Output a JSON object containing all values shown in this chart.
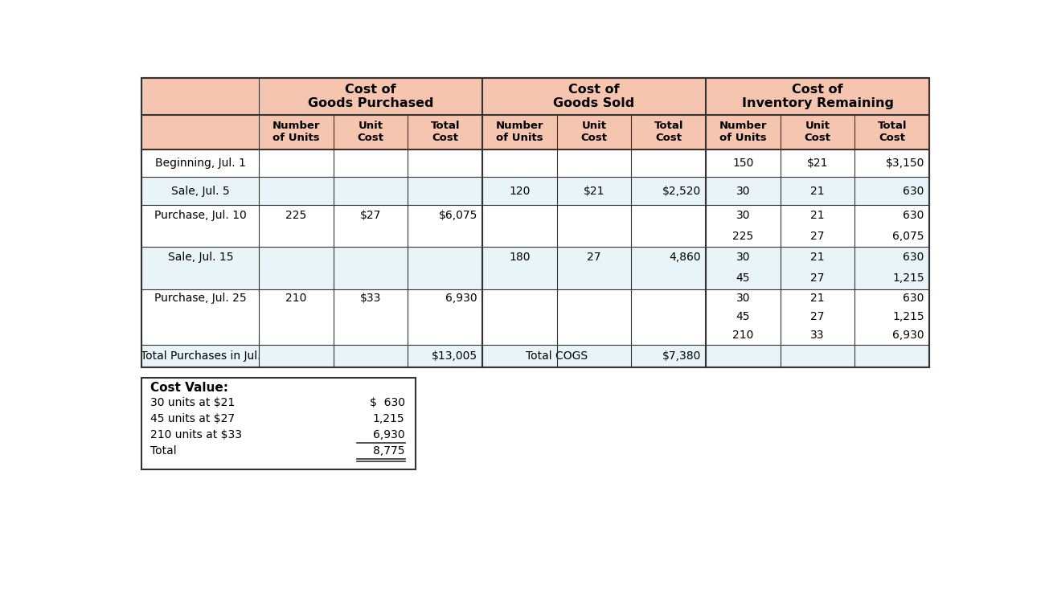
{
  "header_bg_color": "#f5c5b0",
  "row_bg_even": "#e8f4f8",
  "row_bg_odd": "#ffffff",
  "border_color": "#333333",
  "section_headers": [
    "Cost of\nGoods Purchased",
    "Cost of\nGoods Sold",
    "Cost of\nInventory Remaining"
  ],
  "col_headers": [
    "Number\nof Units",
    "Unit\nCost",
    "Total\nCost",
    "Number\nof Units",
    "Unit\nCost",
    "Total\nCost",
    "Number\nof Units",
    "Unit\nCost",
    "Total\nCost"
  ],
  "rows": [
    {
      "label": "Beginning, Jul. 1",
      "purchased": [
        "",
        "",
        ""
      ],
      "sold": [
        "",
        "",
        ""
      ],
      "inventory": [
        [
          "150",
          "$21",
          "$3,150"
        ]
      ]
    },
    {
      "label": "Sale, Jul. 5",
      "purchased": [
        "",
        "",
        ""
      ],
      "sold": [
        "120",
        "$21",
        "$2,520"
      ],
      "inventory": [
        [
          "30",
          "21",
          "630"
        ]
      ]
    },
    {
      "label": "Purchase, Jul. 10",
      "purchased": [
        "225",
        "$27",
        "$6,075"
      ],
      "sold": [
        "",
        "",
        ""
      ],
      "inventory": [
        [
          "30",
          "21",
          "630"
        ],
        [
          "225",
          "27",
          "6,075"
        ]
      ]
    },
    {
      "label": "Sale, Jul. 15",
      "purchased": [
        "",
        "",
        ""
      ],
      "sold": [
        "180",
        "27",
        "4,860"
      ],
      "inventory": [
        [
          "30",
          "21",
          "630"
        ],
        [
          "45",
          "27",
          "1,215"
        ]
      ]
    },
    {
      "label": "Purchase, Jul. 25",
      "purchased": [
        "210",
        "$33",
        "6,930"
      ],
      "sold": [
        "",
        "",
        ""
      ],
      "inventory": [
        [
          "30",
          "21",
          "630"
        ],
        [
          "45",
          "27",
          "1,215"
        ],
        [
          "210",
          "33",
          "6,930"
        ]
      ]
    }
  ],
  "total_label": "Total Purchases in Jul.",
  "total_purchased": "$13,005",
  "total_cogs_label": "Total COGS",
  "total_cogs": "$7,380",
  "cv_title": "Cost Value:",
  "cv_lines": [
    [
      "30 units at $21",
      "$  630"
    ],
    [
      "45 units at $27",
      "1,215"
    ],
    [
      "210 units at $33",
      "6,930"
    ],
    [
      "Total",
      "8,775"
    ]
  ]
}
